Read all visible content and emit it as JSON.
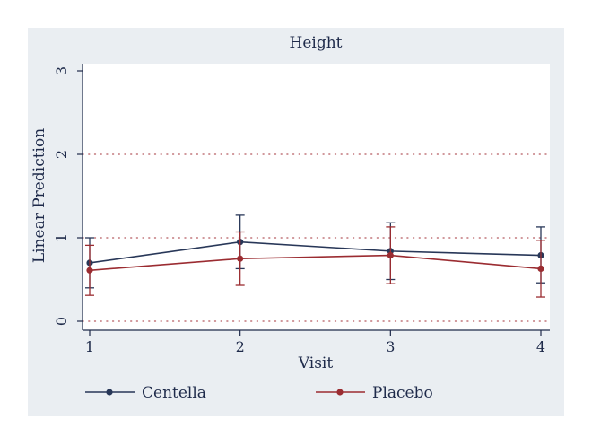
{
  "chart_data": {
    "type": "line",
    "title": "Height",
    "xlabel": "Visit",
    "ylabel": "Linear Prediction",
    "x": [
      1,
      2,
      3,
      4
    ],
    "x_ticks": [
      "1",
      "2",
      "3",
      "4"
    ],
    "y_ticks": [
      "0",
      "1",
      "2",
      "3"
    ],
    "xlim": [
      1,
      4
    ],
    "ylim": [
      0,
      3
    ],
    "grid": "horizontal dotted",
    "legend_position": "bottom",
    "series": [
      {
        "name": "Centella",
        "color": "#283758",
        "values": [
          0.7,
          0.95,
          0.84,
          0.79
        ],
        "ci_low": [
          0.4,
          0.63,
          0.5,
          0.46
        ],
        "ci_high": [
          1.0,
          1.27,
          1.18,
          1.13
        ]
      },
      {
        "name": "Placebo",
        "color": "#9b2c31",
        "values": [
          0.61,
          0.75,
          0.79,
          0.63
        ],
        "ci_low": [
          0.31,
          0.43,
          0.45,
          0.29
        ],
        "ci_high": [
          0.91,
          1.07,
          1.13,
          0.97
        ]
      }
    ]
  }
}
